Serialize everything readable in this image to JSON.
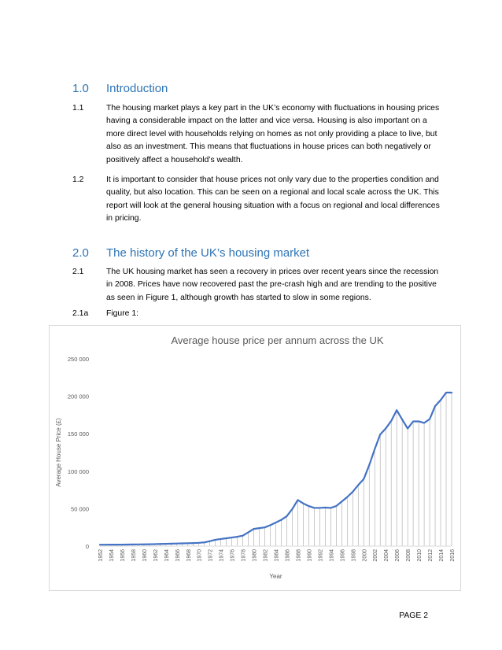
{
  "sections": [
    {
      "number": "1.0",
      "title": "Introduction"
    },
    {
      "number": "2.0",
      "title": "The history of the UK’s housing market"
    }
  ],
  "paragraphs": [
    {
      "number": "1.1",
      "text": "The housing market plays a key part in the UK’s economy with fluctuations in housing prices having a considerable impact on the latter and vice versa.  Housing is also important on a more direct level with households relying on homes as not only providing a place to live, but also as an investment.  This means that fluctuations in house prices can both negatively or positively affect a household’s wealth."
    },
    {
      "number": "1.2",
      "text": "It is important to consider that house prices not only vary due to the properties condition and quality, but also location.  This can be seen on a regional and local scale across the UK.  This report will look at the general housing situation with a focus on regional and local differences in pricing."
    },
    {
      "number": "2.1",
      "text": "The UK housing market has seen a recovery in prices over recent years since the recession in 2008.  Prices have now recovered past the pre-crash high and are trending to the positive as seen in Figure 1, although growth has started to slow in some regions."
    }
  ],
  "figure_label": {
    "number": "2.1a",
    "text": "Figure 1:"
  },
  "footer": {
    "page": "PAGE 2"
  },
  "chart_data": {
    "type": "line",
    "title": "Average house price per annum across the UK",
    "xlabel": "Year",
    "ylabel": "Average House Price (£)",
    "ylim": [
      0,
      250000
    ],
    "yticks": [
      0,
      50000,
      100000,
      150000,
      200000,
      250000
    ],
    "ytick_labels": [
      "0",
      "50 000",
      "100 000",
      "150 000",
      "200 000",
      "250 000"
    ],
    "xtick_labels": [
      "1952",
      "1954",
      "1956",
      "1958",
      "1960",
      "1962",
      "1964",
      "1966",
      "1968",
      "1970",
      "1972",
      "1974",
      "1976",
      "1978",
      "1980",
      "1982",
      "1984",
      "1986",
      "1988",
      "1990",
      "1992",
      "1994",
      "1996",
      "1998",
      "2000",
      "2002",
      "2004",
      "2006",
      "2008",
      "2010",
      "2012",
      "2014",
      "2016"
    ],
    "grid": "drop-lines",
    "line_color": "#4472c4",
    "x": [
      1952,
      1953,
      1954,
      1955,
      1956,
      1957,
      1958,
      1959,
      1960,
      1961,
      1962,
      1963,
      1964,
      1965,
      1966,
      1967,
      1968,
      1969,
      1970,
      1971,
      1972,
      1973,
      1974,
      1975,
      1976,
      1977,
      1978,
      1979,
      1980,
      1981,
      1982,
      1983,
      1984,
      1985,
      1986,
      1987,
      1988,
      1989,
      1990,
      1991,
      1992,
      1993,
      1994,
      1995,
      1996,
      1997,
      1998,
      1999,
      2000,
      2001,
      2002,
      2003,
      2004,
      2005,
      2006,
      2007,
      2008,
      2009,
      2010,
      2011,
      2012,
      2013,
      2014,
      2015,
      2016
    ],
    "values": [
      1900,
      1900,
      1950,
      1950,
      2000,
      2100,
      2200,
      2300,
      2400,
      2500,
      2700,
      2900,
      3100,
      3300,
      3500,
      3700,
      3900,
      4100,
      4400,
      5000,
      6600,
      8500,
      9500,
      10500,
      11500,
      12500,
      14000,
      18500,
      23000,
      24000,
      25000,
      28000,
      31500,
      35000,
      40000,
      49500,
      61500,
      57000,
      53500,
      51000,
      51000,
      51500,
      51000,
      53500,
      59500,
      65500,
      72500,
      81500,
      89500,
      108000,
      129500,
      149000,
      157000,
      167000,
      181500,
      169000,
      157000,
      166500,
      166500,
      164500,
      169500,
      187000,
      195000,
      205000,
      205000
    ]
  }
}
